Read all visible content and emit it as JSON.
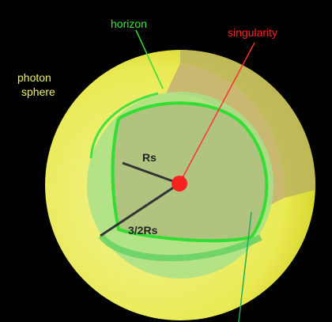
{
  "labels": {
    "horizon": "horizon",
    "singularity": "singularity",
    "photon_sphere": [
      "photon",
      "sphere"
    ],
    "rs": "Rs",
    "three_halves_rs": "3/2Rs"
  }
}
